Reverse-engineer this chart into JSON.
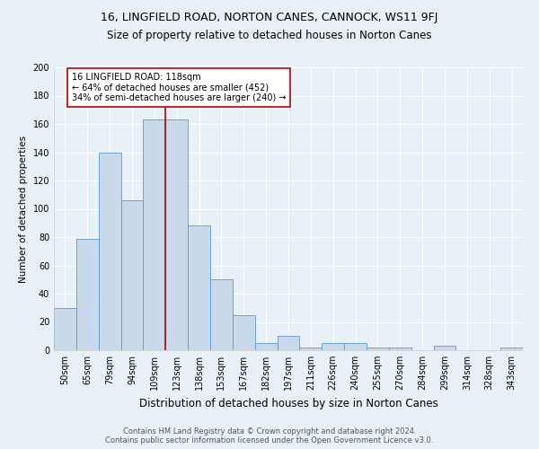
{
  "title": "16, LINGFIELD ROAD, NORTON CANES, CANNOCK, WS11 9FJ",
  "subtitle": "Size of property relative to detached houses in Norton Canes",
  "xlabel": "Distribution of detached houses by size in Norton Canes",
  "ylabel": "Number of detached properties",
  "footnote1": "Contains HM Land Registry data © Crown copyright and database right 2024.",
  "footnote2": "Contains public sector information licensed under the Open Government Licence v3.0.",
  "categories": [
    "50sqm",
    "65sqm",
    "79sqm",
    "94sqm",
    "109sqm",
    "123sqm",
    "138sqm",
    "153sqm",
    "167sqm",
    "182sqm",
    "197sqm",
    "211sqm",
    "226sqm",
    "240sqm",
    "255sqm",
    "270sqm",
    "284sqm",
    "299sqm",
    "314sqm",
    "328sqm",
    "343sqm"
  ],
  "values": [
    30,
    79,
    140,
    106,
    163,
    163,
    88,
    50,
    25,
    5,
    10,
    2,
    5,
    5,
    2,
    2,
    0,
    3,
    0,
    0,
    2
  ],
  "bar_color": "#c8d9eb",
  "bar_edge_color": "#5b9bd5",
  "vline_x_index": 5,
  "vline_color": "#c00000",
  "annotation_line1": "16 LINGFIELD ROAD: 118sqm",
  "annotation_line2": "← 64% of detached houses are smaller (452)",
  "annotation_line3": "34% of semi-detached houses are larger (240) →",
  "annotation_box_color": "#ffffff",
  "annotation_box_edge": "#c00000",
  "annotation_fontsize": 7.0,
  "title_fontsize": 9,
  "subtitle_fontsize": 8.5,
  "xlabel_fontsize": 8.5,
  "ylabel_fontsize": 7.5,
  "footnote_fontsize": 6.0,
  "tick_fontsize": 7,
  "ylim": [
    0,
    200
  ],
  "yticks": [
    0,
    20,
    40,
    60,
    80,
    100,
    120,
    140,
    160,
    180,
    200
  ],
  "background_color": "#e8f0f8",
  "plot_bg_color": "#e8f0f8"
}
